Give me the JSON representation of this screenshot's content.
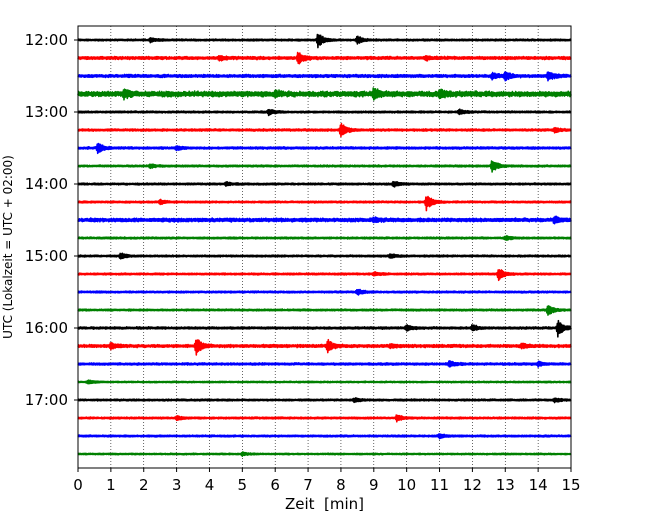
{
  "chart_data": {
    "type": "line",
    "title": "",
    "xlabel": "Zeit  [min]",
    "ylabel": "UTC (Lokalzeit = UTC + 02:00)",
    "xlim": [
      0,
      15
    ],
    "x_ticks": [
      "0",
      "1",
      "2",
      "3",
      "4",
      "5",
      "6",
      "7",
      "8",
      "9",
      "10",
      "11",
      "12",
      "13",
      "14",
      "15"
    ],
    "y_ticks": [
      "12:00",
      "13:00",
      "14:00",
      "15:00",
      "16:00",
      "17:00"
    ],
    "grid": "vertical dotted lines at every minute",
    "trace_interval_minutes": 15,
    "colors": [
      "#000000",
      "#ff0000",
      "#0000ff",
      "#008000"
    ],
    "traces": [
      {
        "start": "12:00",
        "color": "#000000",
        "noise": 0.5,
        "events": [
          {
            "t": 7.3,
            "amp": 7
          },
          {
            "t": 8.5,
            "amp": 4
          },
          {
            "t": 2.2,
            "amp": 2
          }
        ]
      },
      {
        "start": "12:15",
        "color": "#ff0000",
        "noise": 0.8,
        "events": [
          {
            "t": 6.7,
            "amp": 6
          },
          {
            "t": 4.3,
            "amp": 2
          },
          {
            "t": 10.6,
            "amp": 2
          }
        ]
      },
      {
        "start": "12:30",
        "color": "#0000ff",
        "noise": 0.8,
        "events": [
          {
            "t": 13.0,
            "amp": 4
          },
          {
            "t": 14.3,
            "amp": 4
          },
          {
            "t": 12.6,
            "amp": 3
          }
        ]
      },
      {
        "start": "12:45",
        "color": "#008000",
        "noise": 1.5,
        "events": [
          {
            "t": 9.0,
            "amp": 5
          },
          {
            "t": 1.4,
            "amp": 4
          },
          {
            "t": 11.0,
            "amp": 4
          },
          {
            "t": 6.0,
            "amp": 3
          }
        ]
      },
      {
        "start": "13:00",
        "color": "#000000",
        "noise": 0.5,
        "events": [
          {
            "t": 5.8,
            "amp": 3
          },
          {
            "t": 11.6,
            "amp": 3
          }
        ]
      },
      {
        "start": "13:15",
        "color": "#ff0000",
        "noise": 0.6,
        "events": [
          {
            "t": 8.0,
            "amp": 7
          },
          {
            "t": 14.5,
            "amp": 2
          }
        ]
      },
      {
        "start": "13:30",
        "color": "#0000ff",
        "noise": 0.6,
        "events": [
          {
            "t": 0.6,
            "amp": 5
          },
          {
            "t": 3.0,
            "amp": 2
          }
        ]
      },
      {
        "start": "13:45",
        "color": "#008000",
        "noise": 0.5,
        "events": [
          {
            "t": 12.6,
            "amp": 6
          },
          {
            "t": 2.2,
            "amp": 2
          }
        ]
      },
      {
        "start": "14:00",
        "color": "#000000",
        "noise": 0.5,
        "events": [
          {
            "t": 9.6,
            "amp": 3
          },
          {
            "t": 4.5,
            "amp": 2
          }
        ]
      },
      {
        "start": "14:15",
        "color": "#ff0000",
        "noise": 0.5,
        "events": [
          {
            "t": 10.6,
            "amp": 8
          },
          {
            "t": 2.5,
            "amp": 2
          }
        ]
      },
      {
        "start": "14:30",
        "color": "#0000ff",
        "noise": 1.0,
        "events": [
          {
            "t": 14.5,
            "amp": 3
          },
          {
            "t": 9.0,
            "amp": 2
          }
        ]
      },
      {
        "start": "14:45",
        "color": "#008000",
        "noise": 0.5,
        "events": [
          {
            "t": 13.0,
            "amp": 2
          }
        ]
      },
      {
        "start": "15:00",
        "color": "#000000",
        "noise": 0.5,
        "events": [
          {
            "t": 1.3,
            "amp": 3
          },
          {
            "t": 9.5,
            "amp": 2
          }
        ]
      },
      {
        "start": "15:15",
        "color": "#ff0000",
        "noise": 0.5,
        "events": [
          {
            "t": 12.8,
            "amp": 6
          },
          {
            "t": 9.0,
            "amp": 2
          }
        ]
      },
      {
        "start": "15:30",
        "color": "#0000ff",
        "noise": 0.5,
        "events": [
          {
            "t": 8.5,
            "amp": 3
          }
        ]
      },
      {
        "start": "15:45",
        "color": "#008000",
        "noise": 0.5,
        "events": [
          {
            "t": 14.3,
            "amp": 5
          }
        ]
      },
      {
        "start": "16:00",
        "color": "#000000",
        "noise": 0.6,
        "events": [
          {
            "t": 14.6,
            "amp": 8
          },
          {
            "t": 10.0,
            "amp": 3
          },
          {
            "t": 12.0,
            "amp": 3
          }
        ]
      },
      {
        "start": "16:15",
        "color": "#ff0000",
        "noise": 0.8,
        "events": [
          {
            "t": 3.6,
            "amp": 8
          },
          {
            "t": 7.6,
            "amp": 6
          },
          {
            "t": 1.0,
            "amp": 3
          },
          {
            "t": 9.5,
            "amp": 2
          },
          {
            "t": 13.5,
            "amp": 2
          }
        ]
      },
      {
        "start": "16:30",
        "color": "#0000ff",
        "noise": 0.6,
        "events": [
          {
            "t": 11.3,
            "amp": 3
          },
          {
            "t": 14.0,
            "amp": 2
          }
        ]
      },
      {
        "start": "16:45",
        "color": "#008000",
        "noise": 0.4,
        "events": [
          {
            "t": 0.3,
            "amp": 2
          }
        ]
      },
      {
        "start": "17:00",
        "color": "#000000",
        "noise": 0.5,
        "events": [
          {
            "t": 8.4,
            "amp": 2
          },
          {
            "t": 14.5,
            "amp": 2
          }
        ]
      },
      {
        "start": "17:15",
        "color": "#ff0000",
        "noise": 0.5,
        "events": [
          {
            "t": 9.7,
            "amp": 3
          },
          {
            "t": 3.0,
            "amp": 2
          }
        ]
      },
      {
        "start": "17:30",
        "color": "#0000ff",
        "noise": 0.5,
        "events": [
          {
            "t": 11.0,
            "amp": 2
          }
        ]
      },
      {
        "start": "17:45",
        "color": "#008000",
        "noise": 0.4,
        "events": [
          {
            "t": 5.0,
            "amp": 1.5
          }
        ]
      }
    ]
  }
}
